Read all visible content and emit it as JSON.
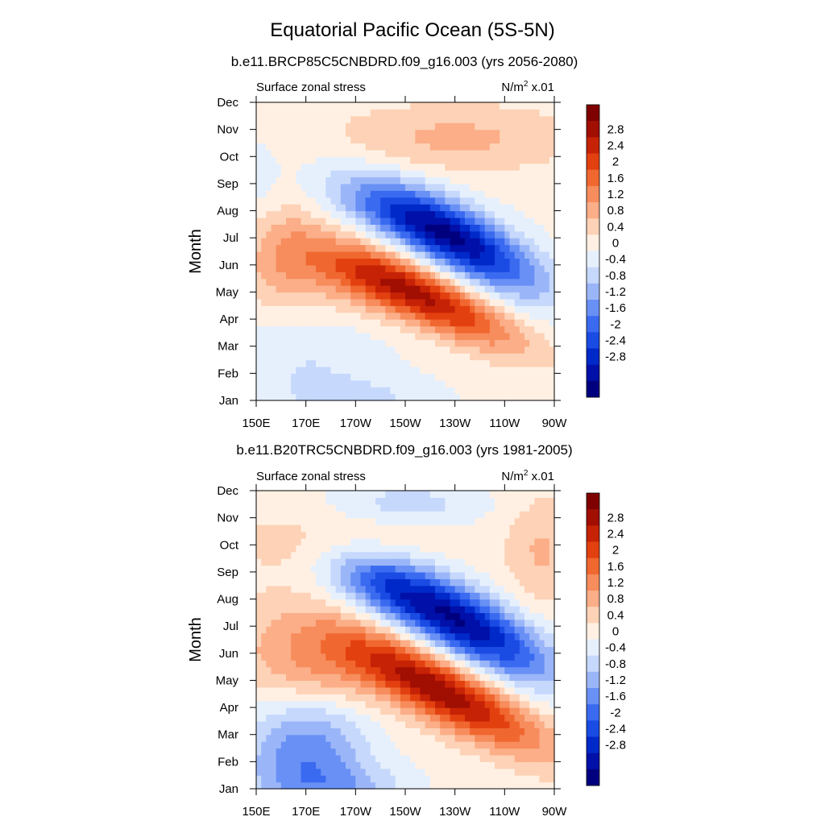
{
  "figure": {
    "title": "Equatorial Pacific Ocean (5S-5N)",
    "left_label": "Surface zonal stress",
    "units_base": "N/m",
    "units_exp": "2",
    "units_scale": "x.01",
    "ylabel": "Month"
  },
  "colors": {
    "levels": [
      "#00007f",
      "#0010a8",
      "#0029c9",
      "#1a4be3",
      "#3a6af0",
      "#6890f5",
      "#9bb6f8",
      "#c6d8fb",
      "#e6f0fd",
      "#fff0e3",
      "#fdd2b6",
      "#fbae88",
      "#f78c5c",
      "#f0672f",
      "#e34010",
      "#c62206",
      "#a10e02",
      "#7f0000"
    ]
  },
  "chart_data": [
    {
      "type": "heatmap",
      "title": "b.e11.BRCP85C5CNBDRD.f09_g16.003 (yrs 2056-2080)",
      "variable": "Surface zonal stress",
      "units": "N/m^2 x.01",
      "xlabel": "",
      "ylabel": "Month",
      "x_tick_labels": [
        "150E",
        "170E",
        "170W",
        "150W",
        "130W",
        "110W",
        "90W"
      ],
      "x_ticks_lon": [
        150,
        170,
        190,
        210,
        230,
        250,
        270
      ],
      "x_range_lon": [
        150,
        270
      ],
      "y_tick_labels": [
        "Jan",
        "Feb",
        "Mar",
        "Apr",
        "May",
        "Jun",
        "Jul",
        "Aug",
        "Sep",
        "Oct",
        "Nov",
        "Dec"
      ],
      "colorbar_labels": [
        "2.8",
        "2.4",
        "2",
        "1.6",
        "1.2",
        "0.8",
        "0.4",
        "0",
        "-0.4",
        "-0.8",
        "-1.2",
        "-1.6",
        "-2",
        "-2.4",
        "-2.8"
      ],
      "blobs": [
        {
          "lon": 230,
          "mon": 7.0,
          "slon": 24,
          "smon": 0.9,
          "amp": -3.2,
          "tilt": -0.045
        },
        {
          "lon": 200,
          "mon": 8.0,
          "slon": 18,
          "smon": 0.7,
          "amp": -0.8,
          "tilt": -0.03
        },
        {
          "lon": 218,
          "mon": 4.8,
          "slon": 26,
          "smon": 0.75,
          "amp": 2.6,
          "tilt": -0.04
        },
        {
          "lon": 188,
          "mon": 5.5,
          "slon": 18,
          "smon": 0.9,
          "amp": 0.9,
          "tilt": -0.02
        },
        {
          "lon": 160,
          "mon": 6.2,
          "slon": 12,
          "smon": 1.4,
          "amp": 0.9,
          "tilt": 0
        },
        {
          "lon": 230,
          "mon": 10.7,
          "slon": 36,
          "smon": 0.9,
          "amp": 0.8,
          "tilt": 0
        },
        {
          "lon": 170,
          "mon": 2.4,
          "slon": 22,
          "smon": 1.4,
          "amp": -0.5,
          "tilt": 0
        },
        {
          "lon": 195,
          "mon": 1.0,
          "slon": 20,
          "smon": 0.6,
          "amp": -0.5,
          "tilt": 0
        },
        {
          "lon": 152,
          "mon": 8.8,
          "slon": 6,
          "smon": 1.5,
          "amp": -0.3,
          "tilt": 0
        }
      ],
      "baseline": 0.1
    },
    {
      "type": "heatmap",
      "title": "b.e11.B20TRC5CNBDRD.f09_g16.003 (yrs 1981-2005)",
      "variable": "Surface zonal stress",
      "units": "N/m^2 x.01",
      "xlabel": "",
      "ylabel": "Month",
      "x_tick_labels": [
        "150E",
        "170E",
        "170W",
        "150W",
        "130W",
        "110W",
        "90W"
      ],
      "x_ticks_lon": [
        150,
        170,
        190,
        210,
        230,
        250,
        270
      ],
      "x_range_lon": [
        150,
        270
      ],
      "y_tick_labels": [
        "Jan",
        "Feb",
        "Mar",
        "Apr",
        "May",
        "Jun",
        "Jul",
        "Aug",
        "Sep",
        "Oct",
        "Nov",
        "Dec"
      ],
      "colorbar_labels": [
        "2.8",
        "2.4",
        "2",
        "1.6",
        "1.2",
        "0.8",
        "0.4",
        "0",
        "-0.4",
        "-0.8",
        "-1.2",
        "-1.6",
        "-2",
        "-2.4",
        "-2.8"
      ],
      "blobs": [
        {
          "lon": 232,
          "mon": 7.2,
          "slon": 26,
          "smon": 0.95,
          "amp": -3.3,
          "tilt": -0.045
        },
        {
          "lon": 198,
          "mon": 8.5,
          "slon": 16,
          "smon": 0.8,
          "amp": -1.0,
          "tilt": -0.03
        },
        {
          "lon": 225,
          "mon": 4.6,
          "slon": 28,
          "smon": 0.85,
          "amp": 2.9,
          "tilt": -0.045
        },
        {
          "lon": 175,
          "mon": 5.6,
          "slon": 22,
          "smon": 1.2,
          "amp": 1.2,
          "tilt": -0.02
        },
        {
          "lon": 170,
          "mon": 2.5,
          "slon": 18,
          "smon": 1.4,
          "amp": -1.6,
          "tilt": 0.02
        },
        {
          "lon": 185,
          "mon": 1.0,
          "slon": 18,
          "smon": 0.7,
          "amp": -1.0,
          "tilt": 0
        },
        {
          "lon": 210,
          "mon": 11.5,
          "slon": 22,
          "smon": 0.6,
          "amp": -0.8,
          "tilt": 0
        },
        {
          "lon": 180,
          "mon": 10.2,
          "slon": 28,
          "smon": 0.9,
          "amp": 0.6,
          "tilt": 0
        },
        {
          "lon": 265,
          "mon": 9.8,
          "slon": 10,
          "smon": 1.4,
          "amp": 0.7,
          "tilt": 0
        }
      ],
      "baseline": 0.15
    }
  ]
}
